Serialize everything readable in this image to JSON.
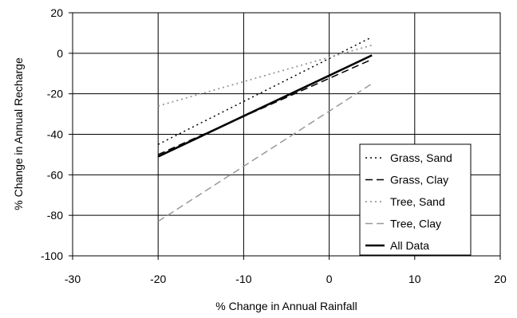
{
  "chart_data": {
    "type": "line",
    "title": "",
    "xlabel": "% Change in Annual Rainfall",
    "ylabel": "% Change in Annual Recharge",
    "xlim": [
      -30,
      20
    ],
    "ylim": [
      -100,
      20
    ],
    "xticks": [
      -30,
      -20,
      -10,
      0,
      10,
      20
    ],
    "yticks": [
      -100,
      -80,
      -60,
      -40,
      -20,
      0,
      20
    ],
    "grid": true,
    "legend_position": "bottom-right inside plot",
    "series": [
      {
        "name": "Grass, Sand",
        "style": "dotted",
        "color": "#000000",
        "width": 1.5,
        "x": [
          -20,
          5
        ],
        "y": [
          -45,
          8
        ]
      },
      {
        "name": "Grass, Clay",
        "style": "dashed",
        "color": "#000000",
        "width": 1.5,
        "x": [
          -20,
          5
        ],
        "y": [
          -50,
          -3
        ]
      },
      {
        "name": "Tree, Sand",
        "style": "dotted",
        "color": "#999999",
        "width": 1.8,
        "x": [
          -20,
          5
        ],
        "y": [
          -26,
          4
        ]
      },
      {
        "name": "Tree, Clay",
        "style": "dashed",
        "color": "#999999",
        "width": 1.5,
        "x": [
          -20,
          5
        ],
        "y": [
          -83,
          -15
        ]
      },
      {
        "name": "All Data",
        "style": "solid",
        "color": "#000000",
        "width": 2.6,
        "x": [
          -20,
          5
        ],
        "y": [
          -51,
          -1
        ]
      }
    ]
  }
}
